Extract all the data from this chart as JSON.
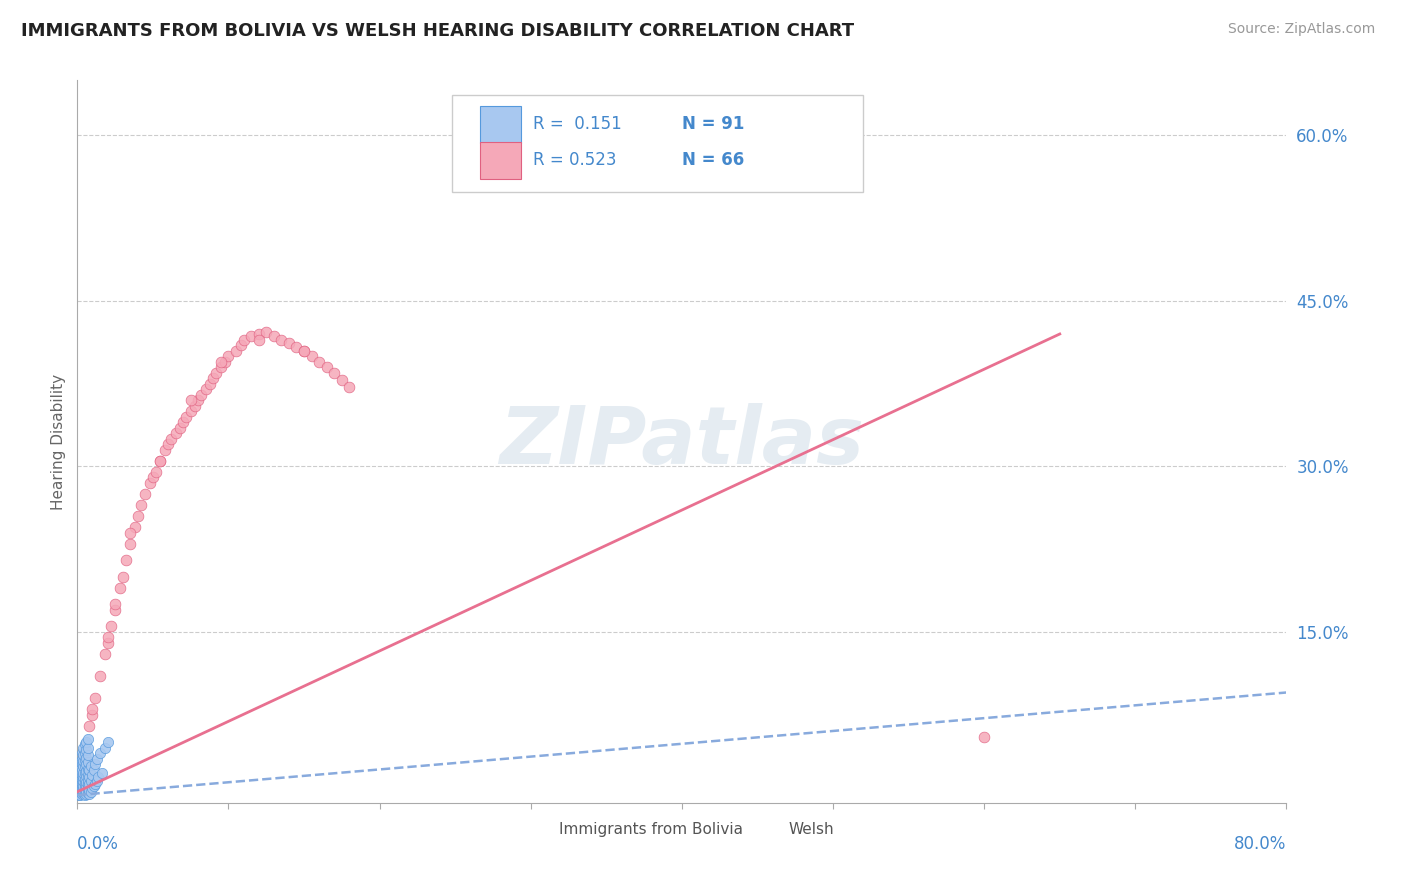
{
  "title": "IMMIGRANTS FROM BOLIVIA VS WELSH HEARING DISABILITY CORRELATION CHART",
  "source": "Source: ZipAtlas.com",
  "ylabel": "Hearing Disability",
  "xlim": [
    0.0,
    0.8
  ],
  "ylim": [
    -0.005,
    0.65
  ],
  "bolivia_R": 0.151,
  "bolivia_N": 91,
  "welsh_R": 0.523,
  "welsh_N": 66,
  "bolivia_color": "#a8c8f0",
  "welsh_color": "#f5a8b8",
  "bolivia_edge_color": "#5599dd",
  "welsh_edge_color": "#e06080",
  "bolivia_trend_color": "#88aadd",
  "welsh_trend_color": "#e87090",
  "yticks": [
    0.0,
    0.15,
    0.3,
    0.45,
    0.6
  ],
  "ytick_labels": [
    "",
    "15.0%",
    "30.0%",
    "45.0%",
    "60.0%"
  ],
  "axis_label_color": "#4488cc",
  "title_color": "#222222",
  "source_color": "#999999",
  "watermark": "ZIPatlas",
  "watermark_color": "#d0dde8",
  "legend_label_bolivia": "Immigrants from Bolivia",
  "legend_label_welsh": "Welsh",
  "bolivia_x": [
    0.001,
    0.001,
    0.001,
    0.001,
    0.001,
    0.001,
    0.001,
    0.001,
    0.001,
    0.001,
    0.002,
    0.002,
    0.002,
    0.002,
    0.002,
    0.002,
    0.002,
    0.002,
    0.002,
    0.002,
    0.003,
    0.003,
    0.003,
    0.003,
    0.003,
    0.003,
    0.003,
    0.003,
    0.003,
    0.003,
    0.004,
    0.004,
    0.004,
    0.004,
    0.004,
    0.004,
    0.004,
    0.004,
    0.004,
    0.004,
    0.005,
    0.005,
    0.005,
    0.005,
    0.005,
    0.005,
    0.005,
    0.005,
    0.005,
    0.005,
    0.006,
    0.006,
    0.006,
    0.006,
    0.006,
    0.006,
    0.006,
    0.006,
    0.006,
    0.006,
    0.007,
    0.007,
    0.007,
    0.007,
    0.007,
    0.007,
    0.007,
    0.007,
    0.007,
    0.007,
    0.008,
    0.008,
    0.008,
    0.008,
    0.008,
    0.009,
    0.009,
    0.009,
    0.01,
    0.01,
    0.011,
    0.011,
    0.012,
    0.012,
    0.013,
    0.013,
    0.014,
    0.015,
    0.016,
    0.018,
    0.02
  ],
  "bolivia_y": [
    0.002,
    0.003,
    0.005,
    0.007,
    0.01,
    0.012,
    0.015,
    0.018,
    0.02,
    0.025,
    0.002,
    0.005,
    0.008,
    0.01,
    0.013,
    0.015,
    0.018,
    0.022,
    0.028,
    0.032,
    0.003,
    0.006,
    0.009,
    0.012,
    0.016,
    0.02,
    0.025,
    0.03,
    0.035,
    0.04,
    0.004,
    0.007,
    0.01,
    0.015,
    0.018,
    0.022,
    0.028,
    0.033,
    0.038,
    0.045,
    0.002,
    0.005,
    0.008,
    0.012,
    0.017,
    0.022,
    0.028,
    0.034,
    0.04,
    0.048,
    0.003,
    0.006,
    0.01,
    0.014,
    0.019,
    0.024,
    0.03,
    0.036,
    0.043,
    0.05,
    0.004,
    0.008,
    0.012,
    0.016,
    0.02,
    0.026,
    0.032,
    0.038,
    0.045,
    0.053,
    0.003,
    0.007,
    0.012,
    0.018,
    0.025,
    0.005,
    0.015,
    0.028,
    0.008,
    0.02,
    0.01,
    0.025,
    0.012,
    0.03,
    0.015,
    0.035,
    0.018,
    0.04,
    0.022,
    0.045,
    0.05
  ],
  "welsh_x": [
    0.005,
    0.008,
    0.01,
    0.012,
    0.015,
    0.018,
    0.02,
    0.022,
    0.025,
    0.028,
    0.03,
    0.032,
    0.035,
    0.038,
    0.04,
    0.042,
    0.045,
    0.048,
    0.05,
    0.052,
    0.055,
    0.058,
    0.06,
    0.062,
    0.065,
    0.068,
    0.07,
    0.072,
    0.075,
    0.078,
    0.08,
    0.082,
    0.085,
    0.088,
    0.09,
    0.092,
    0.095,
    0.098,
    0.1,
    0.105,
    0.108,
    0.11,
    0.115,
    0.12,
    0.125,
    0.13,
    0.135,
    0.14,
    0.145,
    0.15,
    0.155,
    0.16,
    0.165,
    0.17,
    0.175,
    0.18,
    0.01,
    0.02,
    0.035,
    0.055,
    0.075,
    0.095,
    0.12,
    0.15,
    0.6,
    0.025
  ],
  "welsh_y": [
    0.04,
    0.065,
    0.075,
    0.09,
    0.11,
    0.13,
    0.14,
    0.155,
    0.17,
    0.19,
    0.2,
    0.215,
    0.23,
    0.245,
    0.255,
    0.265,
    0.275,
    0.285,
    0.29,
    0.295,
    0.305,
    0.315,
    0.32,
    0.325,
    0.33,
    0.335,
    0.34,
    0.345,
    0.35,
    0.355,
    0.36,
    0.365,
    0.37,
    0.375,
    0.38,
    0.385,
    0.39,
    0.395,
    0.4,
    0.405,
    0.41,
    0.415,
    0.418,
    0.42,
    0.422,
    0.418,
    0.415,
    0.412,
    0.408,
    0.405,
    0.4,
    0.395,
    0.39,
    0.385,
    0.378,
    0.372,
    0.08,
    0.145,
    0.24,
    0.305,
    0.36,
    0.395,
    0.415,
    0.405,
    0.055,
    0.175
  ],
  "bolivia_trend_x": [
    0.0,
    0.8
  ],
  "bolivia_trend_y": [
    0.002,
    0.095
  ],
  "welsh_trend_x": [
    0.0,
    0.65
  ],
  "welsh_trend_y": [
    0.005,
    0.42
  ]
}
